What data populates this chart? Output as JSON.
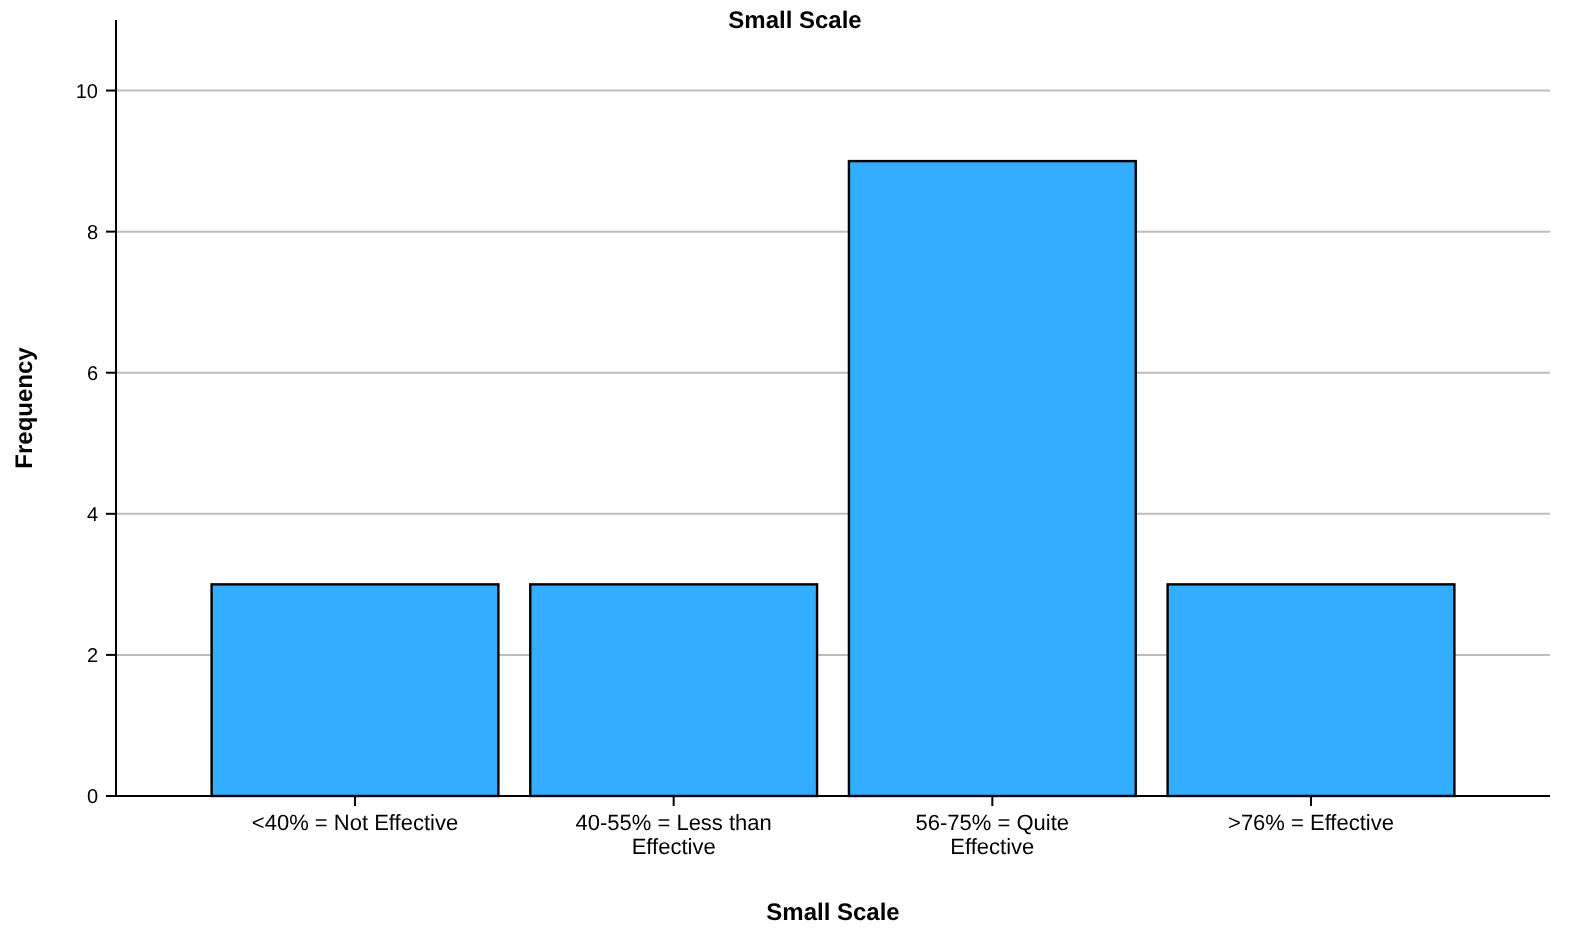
{
  "chart_data": {
    "type": "bar",
    "title": "Small Scale",
    "xlabel": "Small Scale",
    "ylabel": "Frequency",
    "categories": [
      "<40% = Not Effective",
      "40-55% = Less than Effective",
      "56-75% = Quite Effective",
      ">76% = Effective"
    ],
    "values": [
      3,
      3,
      9,
      3
    ],
    "color": "#33adff",
    "ylim": [
      0,
      11
    ],
    "yticks": [
      0,
      2,
      4,
      6,
      8,
      10
    ],
    "grid": "y"
  }
}
